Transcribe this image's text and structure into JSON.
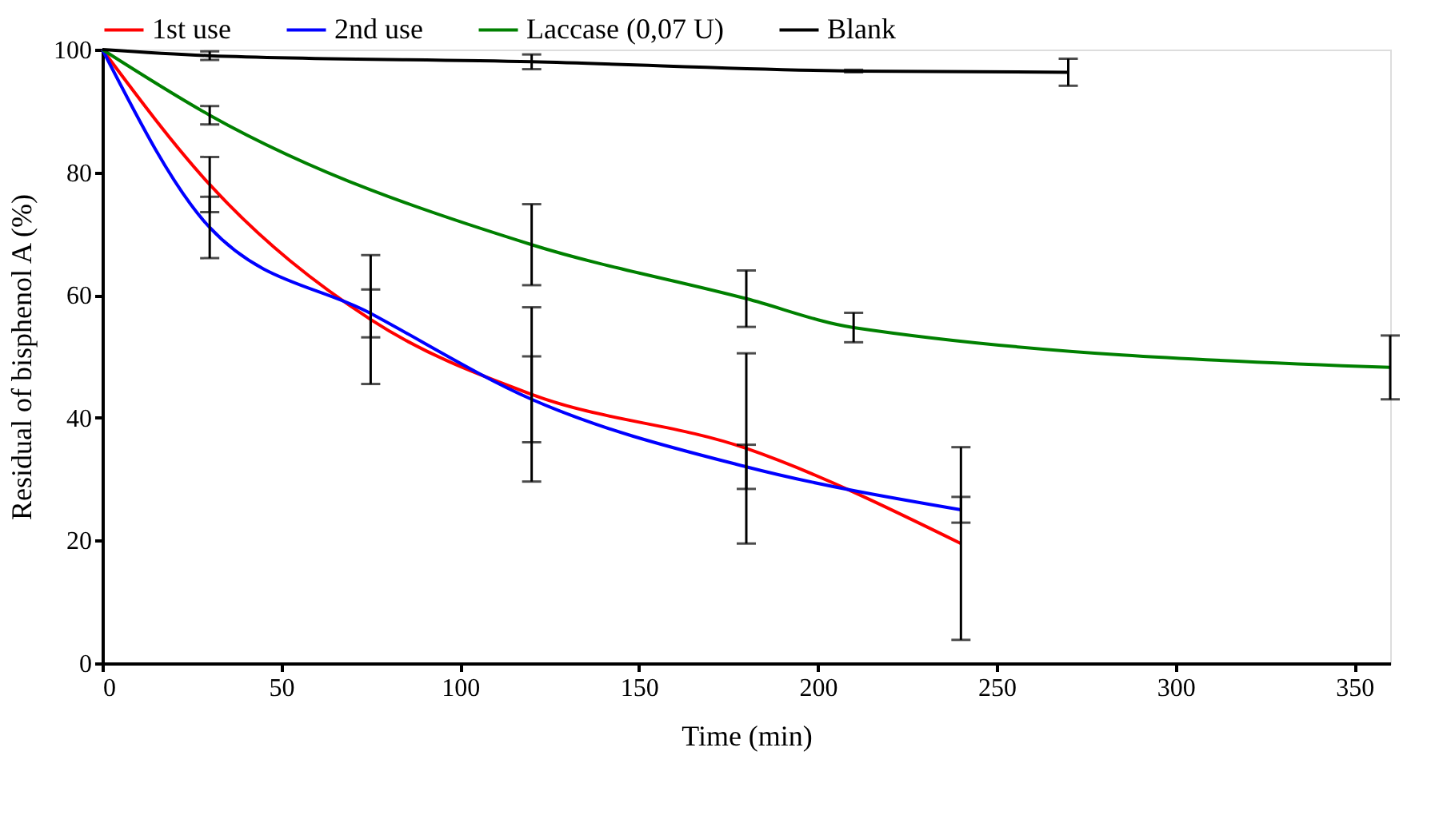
{
  "chart_data": {
    "type": "line",
    "xlabel": "Time (min)",
    "ylabel": "Residual of bisphenol A (%)",
    "xlim": [
      0,
      360
    ],
    "xticks": [
      0,
      50,
      100,
      150,
      200,
      250,
      300,
      350
    ],
    "ylim": [
      0,
      100
    ],
    "yticks": [
      0,
      20,
      40,
      60,
      80,
      100
    ],
    "grid": false,
    "legend": "top",
    "marker": "none",
    "line_style": "solid",
    "series": [
      {
        "name": "1st use",
        "color": "#ff0000",
        "x": [
          0,
          30,
          75,
          120,
          180,
          240
        ],
        "values": [
          100,
          78,
          56,
          43.8,
          35,
          19.5
        ],
        "errors": [
          null,
          4.5,
          10.5,
          14.2,
          15.5,
          15.7
        ]
      },
      {
        "name": "2nd use",
        "color": "#0000ff",
        "x": [
          0,
          30,
          75,
          120,
          180,
          240
        ],
        "values": [
          100,
          71,
          57,
          43,
          32,
          25
        ],
        "errors": [
          null,
          5,
          3.9,
          7,
          3.6,
          2.1
        ]
      },
      {
        "name": "Laccase (0,07 U)",
        "color": "#008000",
        "x": [
          0,
          30,
          120,
          180,
          210,
          360
        ],
        "values": [
          100,
          89.3,
          68.2,
          59.4,
          54.7,
          48.2
        ],
        "errors": [
          null,
          1.5,
          6.6,
          4.6,
          2.4,
          5.2
        ]
      },
      {
        "name": "Blank",
        "color": "#000000",
        "x": [
          0,
          30,
          120,
          210,
          270
        ],
        "values": [
          100,
          99,
          98,
          96.5,
          96.3
        ],
        "errors": [
          null,
          0.7,
          1.2,
          0.2,
          2.2
        ]
      }
    ]
  }
}
